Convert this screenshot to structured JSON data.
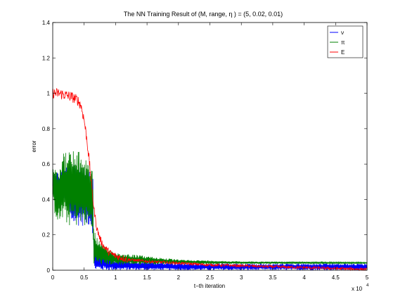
{
  "chart_data": {
    "type": "line",
    "title": "The NN Training Result of (M, range, η ) = (5, 0.02, 0.01)",
    "xlabel": "t−th iteration",
    "ylabel": "error",
    "x_multiplier_label": "x 10",
    "x_multiplier_exponent": "4",
    "xlim": [
      0,
      50000
    ],
    "ylim": [
      0,
      1.4
    ],
    "x_ticks": [
      0,
      5000,
      10000,
      15000,
      20000,
      25000,
      30000,
      35000,
      40000,
      45000,
      50000
    ],
    "x_tick_labels": [
      "0",
      "0.5",
      "1",
      "1.5",
      "2",
      "2.5",
      "3",
      "3.5",
      "4",
      "4.5",
      "5"
    ],
    "y_ticks": [
      0,
      0.2,
      0.4,
      0.6,
      0.8,
      1.0,
      1.2,
      1.4
    ],
    "y_tick_labels": [
      "0",
      "0.2",
      "0.4",
      "0.6",
      "0.8",
      "1",
      "1.2",
      "1.4"
    ],
    "grid": false,
    "legend_position": "top-right",
    "series": [
      {
        "name": "ν",
        "color": "#0000ff",
        "band": true,
        "x": [
          0,
          1000,
          1500,
          2500,
          2800,
          3500,
          5000,
          5600,
          6000,
          6400,
          6500,
          6600,
          7000,
          10000,
          15000,
          20000,
          22000,
          25000,
          50000
        ],
        "low": [
          0.45,
          0.42,
          0.4,
          0.4,
          0.26,
          0.25,
          0.25,
          0.25,
          0.25,
          0.2,
          0.05,
          0.0,
          0.0,
          0.0,
          0.0,
          0.0,
          0.0,
          0.0,
          0.0
        ],
        "high": [
          0.58,
          0.55,
          0.58,
          0.6,
          0.55,
          0.6,
          0.62,
          0.62,
          0.55,
          0.55,
          0.25,
          0.15,
          0.1,
          0.06,
          0.05,
          0.04,
          0.04,
          0.038,
          0.038
        ]
      },
      {
        "name": "π",
        "color": "#008000",
        "band": true,
        "x": [
          0,
          1000,
          1500,
          2500,
          3500,
          4800,
          5500,
          6000,
          6400,
          6500,
          6800,
          8000,
          10000,
          15000,
          20000,
          30000,
          50000
        ],
        "low": [
          0.35,
          0.25,
          0.28,
          0.25,
          0.25,
          0.25,
          0.24,
          0.24,
          0.2,
          0.04,
          0.03,
          0.03,
          0.03,
          0.032,
          0.035,
          0.036,
          0.038
        ],
        "high": [
          0.62,
          0.6,
          0.66,
          0.68,
          0.68,
          0.66,
          0.64,
          0.62,
          0.55,
          0.25,
          0.2,
          0.14,
          0.1,
          0.08,
          0.06,
          0.05,
          0.045
        ]
      },
      {
        "name": "E",
        "color": "#ff0000",
        "band": false,
        "x": [
          0,
          1000,
          2000,
          3000,
          4000,
          4500,
          5000,
          5500,
          6000,
          6500,
          7000,
          7500,
          8000,
          9000,
          10000,
          12000,
          15000,
          20000,
          25000,
          30000,
          35000,
          40000,
          45000,
          50000
        ],
        "y": [
          1.0,
          1.0,
          0.99,
          0.98,
          0.96,
          0.93,
          0.85,
          0.72,
          0.55,
          0.36,
          0.24,
          0.18,
          0.14,
          0.1,
          0.08,
          0.06,
          0.05,
          0.04,
          0.03,
          0.025,
          0.02,
          0.015,
          0.01,
          0.005
        ]
      }
    ]
  }
}
